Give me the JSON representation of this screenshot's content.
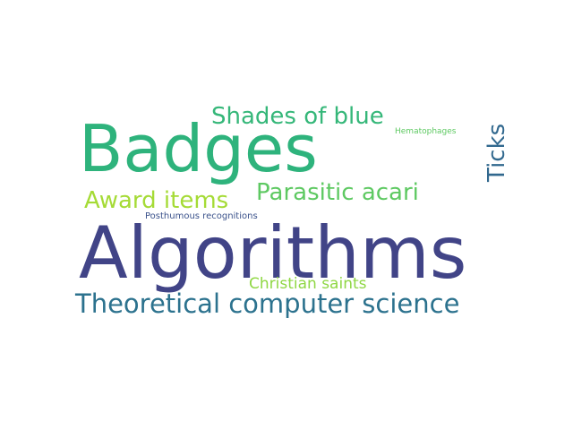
{
  "words": [
    {
      "id": "algorithms",
      "text": "Algorithms",
      "color": "#414487"
    },
    {
      "id": "badges",
      "text": "Badges",
      "color": "#2eb37c"
    },
    {
      "id": "tcs",
      "text": "Theoretical computer science",
      "color": "#2c728e"
    },
    {
      "id": "shades",
      "text": "Shades of blue",
      "color": "#35b779"
    },
    {
      "id": "parasitic",
      "text": "Parasitic acari",
      "color": "#5ec962"
    },
    {
      "id": "award",
      "text": "Award items",
      "color": "#a5db36"
    },
    {
      "id": "ticks",
      "text": "Ticks",
      "color": "#31688e",
      "orientation": "vertical"
    },
    {
      "id": "christian",
      "text": "Christian saints",
      "color": "#8fd744"
    },
    {
      "id": "posthumous",
      "text": "Posthumous recognitions",
      "color": "#3b528b"
    },
    {
      "id": "hemato",
      "text": "Hematophages",
      "color": "#5ec962"
    }
  ]
}
